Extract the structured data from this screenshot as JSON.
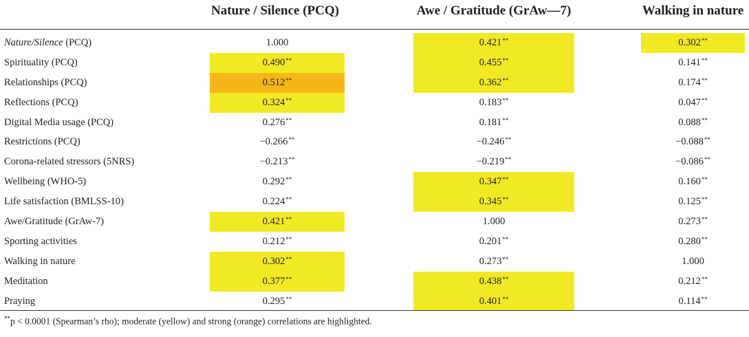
{
  "header": {
    "col1": "Nature / Silence (PCQ)",
    "col2": "Awe / Gratitude (GrAw—7)",
    "col3": "Walking in nature"
  },
  "rows": [
    {
      "label_italic": "Nature/Silence",
      "label_rest": " (PCQ)",
      "v1": "1.000",
      "v1_sig": "",
      "v2": "0.421",
      "v2_sig": "**",
      "v3": "0.302",
      "v3_sig": "**",
      "hl1": "none",
      "hl2": "yellow",
      "hl3": "yellow"
    },
    {
      "label": "Spirituality (PCQ)",
      "v1": "0.490",
      "v1_sig": "**",
      "v2": "0.455",
      "v2_sig": "**",
      "v3": "0.141",
      "v3_sig": "**",
      "hl1": "yellow",
      "hl2": "yellow",
      "hl3": "none"
    },
    {
      "label": "Relationships (PCQ)",
      "v1": "0.512",
      "v1_sig": "**",
      "v2": "0.362",
      "v2_sig": "**",
      "v3": "0.174",
      "v3_sig": "**",
      "hl1": "orange",
      "hl2": "yellow",
      "hl3": "none"
    },
    {
      "label": "Reflections (PCQ)",
      "v1": "0.324",
      "v1_sig": "**",
      "v2": "0.183",
      "v2_sig": "**",
      "v3": "0.047",
      "v3_sig": "**",
      "hl1": "yellow",
      "hl2": "none",
      "hl3": "none"
    },
    {
      "label": "Digital Media usage (PCQ)",
      "v1": "0.276",
      "v1_sig": "**",
      "v2": "0.181",
      "v2_sig": "**",
      "v3": "0.088",
      "v3_sig": "**",
      "hl1": "none",
      "hl2": "none",
      "hl3": "none"
    },
    {
      "label": "Restrictions (PCQ)",
      "v1": "−0.266",
      "v1_sig": "**",
      "v2": "−0.246",
      "v2_sig": "**",
      "v3": "−0.088",
      "v3_sig": "**",
      "hl1": "none",
      "hl2": "none",
      "hl3": "none"
    },
    {
      "label": "Corona-related stressors (5NRS)",
      "v1": "−0.213",
      "v1_sig": "**",
      "v2": "−0.219",
      "v2_sig": "**",
      "v3": "−0.086",
      "v3_sig": "**",
      "hl1": "none",
      "hl2": "none",
      "hl3": "none"
    },
    {
      "label": "Wellbeing (WHO-5)",
      "v1": "0.292",
      "v1_sig": "**",
      "v2": "0.347",
      "v2_sig": "**",
      "v3": "0.160",
      "v3_sig": "**",
      "hl1": "none",
      "hl2": "yellow",
      "hl3": "none"
    },
    {
      "label": "Life satisfaction (BMLSS-10)",
      "v1": "0.224",
      "v1_sig": "**",
      "v2": "0.345",
      "v2_sig": "**",
      "v3": "0.125",
      "v3_sig": "**",
      "hl1": "none",
      "hl2": "yellow",
      "hl3": "none"
    },
    {
      "label": "Awe/Gratitude (GrAw-7)",
      "v1": "0.421",
      "v1_sig": "**",
      "v2": "1.000",
      "v2_sig": "",
      "v3": "0.273",
      "v3_sig": "**",
      "hl1": "yellow",
      "hl2": "none",
      "hl3": "none"
    },
    {
      "label": "Sporting activities",
      "v1": "0.212",
      "v1_sig": "**",
      "v2": "0.201",
      "v2_sig": "**",
      "v3": "0.280",
      "v3_sig": "**",
      "hl1": "none",
      "hl2": "none",
      "hl3": "none"
    },
    {
      "label": "Walking in nature",
      "v1": "0.302",
      "v1_sig": "**",
      "v2": "0.273",
      "v2_sig": "**",
      "v3": "1.000",
      "v3_sig": "",
      "hl1": "yellow",
      "hl2": "none",
      "hl3": "none"
    },
    {
      "label": "Meditation",
      "v1": "0.377",
      "v1_sig": "**",
      "v2": "0.438",
      "v2_sig": "**",
      "v3": "0.212",
      "v3_sig": "**",
      "hl1": "yellow",
      "hl2": "yellow",
      "hl3": "none"
    },
    {
      "label": "Praying",
      "v1": "0.295",
      "v1_sig": "**",
      "v2": "0.401",
      "v2_sig": "**",
      "v3": "0.114",
      "v3_sig": "**",
      "hl1": "none",
      "hl2": "yellow",
      "hl3": "none"
    }
  ],
  "footnote": {
    "marker": "**",
    "text": "p < 0.0001 (Spearman’s rho); moderate (yellow) and strong (orange) correlations are highlighted."
  },
  "colors": {
    "yellow": "#f2e925",
    "orange": "#f7b617"
  }
}
